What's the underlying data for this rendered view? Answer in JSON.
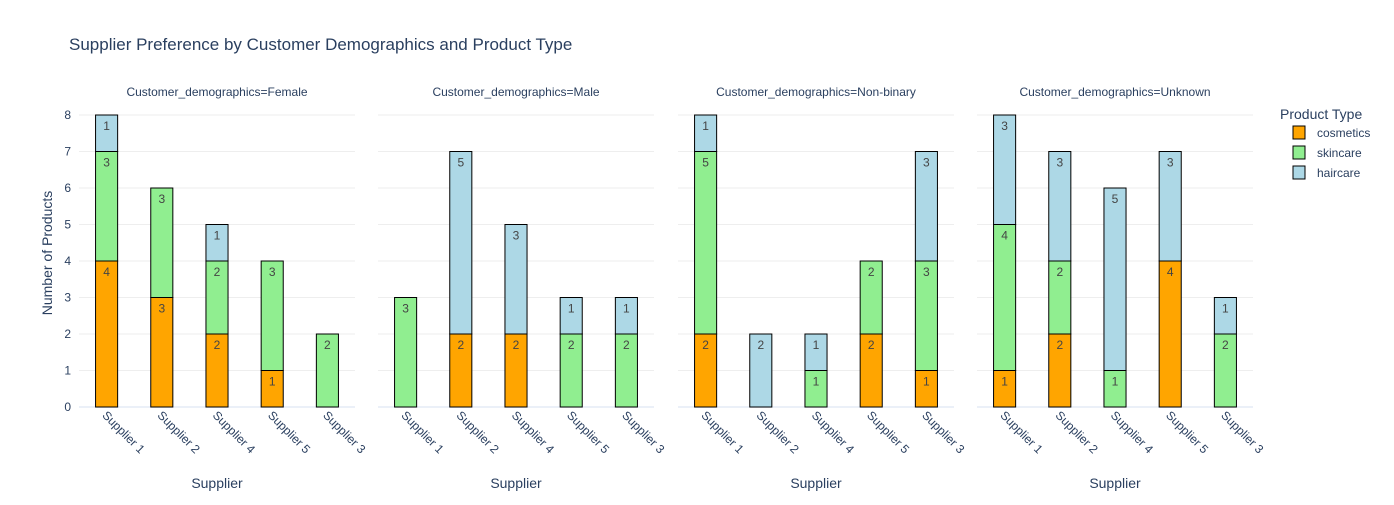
{
  "chart_data": {
    "type": "bar",
    "title": "Supplier Preference by Customer Demographics and Product Type",
    "ylabel": "Number of Products",
    "xlabel": "Supplier",
    "ylim": [
      0,
      8
    ],
    "yticks": [
      0,
      1,
      2,
      3,
      4,
      5,
      6,
      7,
      8
    ],
    "legend": {
      "title": "Product Type",
      "placement": "right"
    },
    "series": [
      {
        "name": "cosmetics",
        "color": "#FFA500"
      },
      {
        "name": "skincare",
        "color": "#90EE90"
      },
      {
        "name": "haircare",
        "color": "#ADD8E6"
      }
    ],
    "facets": [
      {
        "label": "Customer_demographics=Female",
        "categories": [
          "Supplier 1",
          "Supplier 2",
          "Supplier 4",
          "Supplier 5",
          "Supplier 3"
        ],
        "values": {
          "cosmetics": [
            4,
            3,
            2,
            1,
            0
          ],
          "skincare": [
            3,
            3,
            2,
            3,
            2
          ],
          "haircare": [
            1,
            0,
            1,
            0,
            0
          ]
        }
      },
      {
        "label": "Customer_demographics=Male",
        "categories": [
          "Supplier 1",
          "Supplier 2",
          "Supplier 4",
          "Supplier 5",
          "Supplier 3"
        ],
        "values": {
          "cosmetics": [
            0,
            2,
            2,
            0,
            0
          ],
          "skincare": [
            3,
            0,
            0,
            2,
            2
          ],
          "haircare": [
            0,
            5,
            3,
            1,
            1
          ]
        }
      },
      {
        "label": "Customer_demographics=Non-binary",
        "categories": [
          "Supplier 1",
          "Supplier 2",
          "Supplier 4",
          "Supplier 5",
          "Supplier 3"
        ],
        "values": {
          "cosmetics": [
            2,
            0,
            0,
            2,
            1
          ],
          "skincare": [
            5,
            0,
            1,
            2,
            3
          ],
          "haircare": [
            1,
            2,
            1,
            0,
            3
          ]
        }
      },
      {
        "label": "Customer_demographics=Unknown",
        "categories": [
          "Supplier 1",
          "Supplier 2",
          "Supplier 4",
          "Supplier 5",
          "Supplier 3"
        ],
        "values": {
          "cosmetics": [
            1,
            2,
            0,
            4,
            0
          ],
          "skincare": [
            4,
            2,
            1,
            0,
            2
          ],
          "haircare": [
            3,
            3,
            5,
            3,
            1
          ]
        }
      }
    ]
  }
}
